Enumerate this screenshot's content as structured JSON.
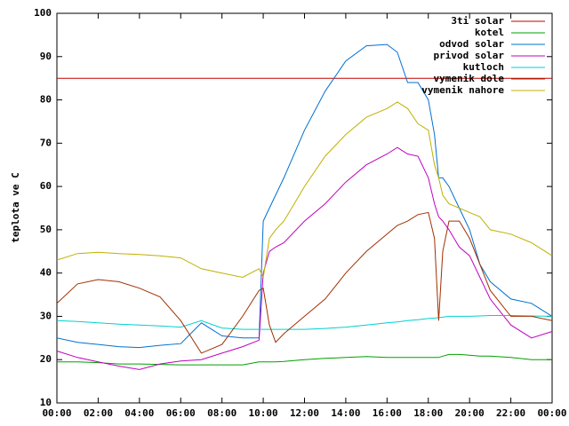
{
  "chart_data": {
    "type": "line",
    "y_label": "teplota ve C",
    "x": [
      0,
      1,
      2,
      3,
      4,
      5,
      6,
      7,
      8,
      9,
      9.8,
      10,
      10.3,
      10.6,
      11,
      12,
      13,
      14,
      15,
      16,
      16.5,
      17,
      17.5,
      18,
      18.3,
      18.5,
      18.7,
      19,
      19.5,
      20,
      20.5,
      21,
      22,
      23,
      24
    ],
    "xlim": [
      0,
      24
    ],
    "xticks": [
      {
        "value": 0,
        "label": "00:00"
      },
      {
        "value": 2,
        "label": "02:00"
      },
      {
        "value": 4,
        "label": "04:00"
      },
      {
        "value": 6,
        "label": "06:00"
      },
      {
        "value": 8,
        "label": "08:00"
      },
      {
        "value": 10,
        "label": "10:00"
      },
      {
        "value": 12,
        "label": "12:00"
      },
      {
        "value": 14,
        "label": "14:00"
      },
      {
        "value": 16,
        "label": "16:00"
      },
      {
        "value": 18,
        "label": "18:00"
      },
      {
        "value": 20,
        "label": "20:00"
      },
      {
        "value": 22,
        "label": "22:00"
      },
      {
        "value": 24,
        "label": "00:00"
      }
    ],
    "ylim": [
      10,
      100
    ],
    "yticks": [
      10,
      20,
      30,
      40,
      50,
      60,
      70,
      80,
      90,
      100
    ],
    "grid": false,
    "legend": "top-right",
    "series": [
      {
        "name": "3ti solar",
        "color": "#c00000",
        "values": [
          85,
          85,
          85,
          85,
          85,
          85,
          85,
          85,
          85,
          85,
          85,
          85,
          85,
          85,
          85,
          85,
          85,
          85,
          85,
          85,
          85,
          85,
          85,
          85,
          85,
          85,
          85,
          85,
          85,
          85,
          85,
          85,
          85,
          85,
          85
        ]
      },
      {
        "name": "kotel",
        "color": "#00a000",
        "values": [
          19.5,
          19.5,
          19.3,
          19,
          19,
          18.9,
          18.8,
          18.8,
          18.8,
          18.8,
          19.5,
          19.5,
          19.5,
          19.5,
          19.6,
          20,
          20.3,
          20.5,
          20.7,
          20.5,
          20.5,
          20.5,
          20.5,
          20.5,
          20.5,
          20.5,
          20.8,
          21.2,
          21.2,
          21,
          20.8,
          20.8,
          20.5,
          20,
          20
        ]
      },
      {
        "name": "odvod solar",
        "color": "#0070d0",
        "values": [
          25,
          24,
          23.5,
          23,
          22.8,
          23.3,
          23.7,
          28.5,
          25.5,
          25,
          25,
          52,
          55,
          58,
          62,
          73,
          82,
          89,
          92.5,
          92.8,
          91,
          84,
          84,
          80,
          72,
          62,
          62,
          60,
          55,
          50,
          42,
          38,
          34,
          33,
          30
        ]
      },
      {
        "name": "privod solar",
        "color": "#c000c0",
        "values": [
          22,
          20.5,
          19.5,
          18.5,
          17.7,
          19,
          19.7,
          20,
          21.5,
          23,
          24.5,
          40,
          45,
          46,
          47,
          52,
          56,
          61,
          65,
          67.5,
          69,
          67.5,
          67,
          62,
          56,
          53,
          52,
          50,
          46,
          44,
          39,
          34,
          28,
          25,
          26.5
        ]
      },
      {
        "name": "kutloch",
        "color": "#00d0d0",
        "values": [
          29,
          28.8,
          28.5,
          28.2,
          28,
          27.8,
          27.5,
          29,
          27.3,
          27,
          27,
          27,
          27,
          27,
          27,
          27,
          27.2,
          27.5,
          28,
          28.5,
          28.7,
          29,
          29.2,
          29.5,
          29.6,
          29.7,
          29.8,
          30,
          30,
          30,
          30.1,
          30.2,
          30.2,
          30.1,
          30
        ]
      },
      {
        "name": "vymenik dole",
        "color": "#a03000",
        "values": [
          33,
          37.5,
          38.5,
          38,
          36.5,
          34.5,
          29,
          21.5,
          23.5,
          30,
          36,
          36.5,
          28,
          24,
          26,
          30,
          34,
          40,
          45,
          49,
          51,
          52,
          53.5,
          54,
          48,
          29,
          45,
          52,
          52,
          48,
          42,
          36,
          30,
          30,
          29
        ]
      },
      {
        "name": "vymenik nahore",
        "color": "#c0b000",
        "values": [
          43,
          44.5,
          44.8,
          44.5,
          44.3,
          44,
          43.5,
          41,
          40,
          39,
          41,
          39,
          48,
          50,
          52,
          60,
          67,
          72,
          76,
          78,
          79.5,
          78,
          74.5,
          73,
          65,
          62,
          58,
          56,
          55,
          54,
          53,
          50,
          49,
          47,
          44
        ]
      }
    ]
  }
}
